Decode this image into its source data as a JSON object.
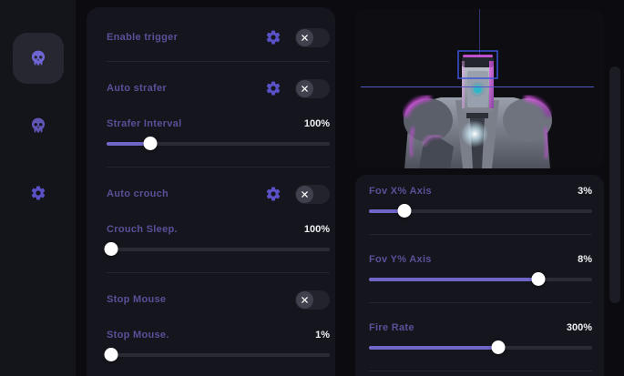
{
  "sidebar": {
    "items": [
      {
        "icon": "skull",
        "active": true
      },
      {
        "icon": "skull",
        "active": false
      },
      {
        "icon": "gear",
        "active": false
      }
    ]
  },
  "features": {
    "groups": [
      {
        "label": "Enable trigger",
        "has_settings": true,
        "toggle_state": "off"
      },
      {
        "label": "Auto strafer",
        "has_settings": true,
        "toggle_state": "off",
        "slider": {
          "label": "Strafer Interval",
          "value": "100%",
          "fill_pct": 19.5
        }
      },
      {
        "label": "Auto crouch",
        "has_settings": true,
        "toggle_state": "off",
        "slider": {
          "label": "Crouch Sleep.",
          "value": "100%",
          "fill_pct": 2
        }
      },
      {
        "label": "Stop Mouse",
        "has_settings": false,
        "toggle_state": "off",
        "slider": {
          "label": "Stop Mouse.",
          "value": "1%",
          "fill_pct": 2
        }
      }
    ]
  },
  "aim": {
    "sliders": [
      {
        "label": "Fov X% Axis",
        "value": "3%",
        "fill_pct": 16
      },
      {
        "label": "Fov Y% Axis",
        "value": "8%",
        "fill_pct": 76
      },
      {
        "label": "Fire Rate",
        "value": "300%",
        "fill_pct": 58
      }
    ]
  },
  "colors": {
    "page_bg": "#0b0b10",
    "sidebar_bg": "#14141b",
    "panel": "#15151d",
    "accent_purple": "#6f66c8",
    "icon_purple": "#5b51c6",
    "label_purple": "#5a5099",
    "value_text": "#eef0f4",
    "toggle_track": "#23232e",
    "toggle_knob": "#41414d",
    "slider_track": "#2b2b36",
    "divider": "#24242d",
    "crosshair_h": "#5457c4",
    "crosshair_v": "#33336f",
    "head_box": "#3d55d8",
    "robot_magenta": "#e05cf0",
    "robot_teal": "#2fb7c9"
  }
}
